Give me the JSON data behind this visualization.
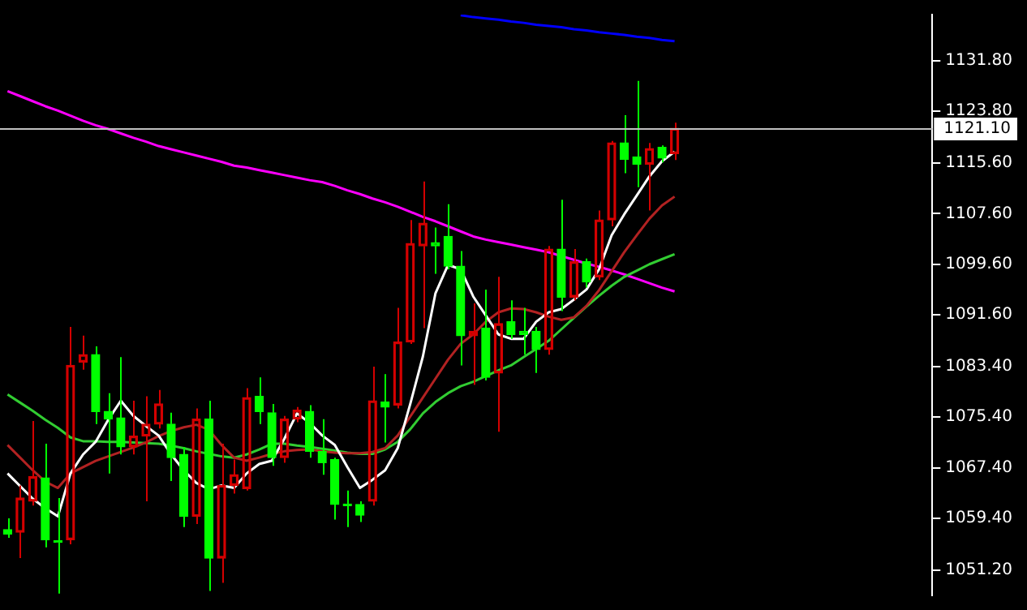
{
  "chart_data": {
    "type": "candlestick",
    "categories": [
      null,
      null,
      null,
      null,
      null,
      null,
      null,
      null,
      null,
      null,
      null,
      null,
      null,
      null,
      null,
      null,
      null,
      null,
      null,
      null,
      null,
      null,
      null,
      null,
      null,
      null,
      null,
      null,
      null,
      null,
      null,
      null,
      null,
      null,
      null,
      null,
      null,
      null,
      null,
      null,
      null,
      null,
      null,
      null,
      null,
      null,
      null,
      null,
      null,
      null,
      null,
      null,
      null,
      null
    ],
    "ohlc": [
      [
        1057.6,
        1059.4,
        1056.3,
        1056.9
      ],
      [
        1057.2,
        1064.6,
        1053.1,
        1062.6
      ],
      [
        1062.1,
        1074.8,
        1061.4,
        1066.0
      ],
      [
        1065.8,
        1071.2,
        1054.8,
        1056.0
      ],
      [
        1055.8,
        1062.6,
        1047.5,
        1055.6
      ],
      [
        1056.0,
        1089.7,
        1055.3,
        1083.6
      ],
      [
        1084.1,
        1088.3,
        1082.9,
        1085.3
      ],
      [
        1085.3,
        1086.6,
        1074.3,
        1076.3
      ],
      [
        1076.3,
        1079.2,
        1066.5,
        1075.1
      ],
      [
        1075.3,
        1084.9,
        1069.5,
        1070.7
      ],
      [
        1070.7,
        1078.0,
        1069.5,
        1072.4
      ],
      [
        1072.4,
        1078.7,
        1062.1,
        1074.3
      ],
      [
        1074.3,
        1079.7,
        1073.6,
        1077.5
      ],
      [
        1074.3,
        1076.1,
        1065.3,
        1069.0
      ],
      [
        1069.5,
        1070.7,
        1058.0,
        1059.7
      ],
      [
        1059.7,
        1076.8,
        1058.5,
        1075.1
      ],
      [
        1075.1,
        1078.0,
        1047.9,
        1053.1
      ],
      [
        1053.1,
        1071.2,
        1049.2,
        1064.6
      ],
      [
        1064.6,
        1068.7,
        1063.3,
        1066.3
      ],
      [
        1064.1,
        1080.0,
        1063.8,
        1078.5
      ],
      [
        1078.7,
        1081.7,
        1074.3,
        1076.3
      ],
      [
        1076.1,
        1077.5,
        1067.7,
        1069.0
      ],
      [
        1069.0,
        1075.6,
        1068.2,
        1075.1
      ],
      [
        1075.1,
        1077.0,
        1074.6,
        1076.5
      ],
      [
        1076.3,
        1077.3,
        1069.0,
        1070.0
      ],
      [
        1070.0,
        1075.1,
        1066.3,
        1068.2
      ],
      [
        1068.7,
        1069.0,
        1059.2,
        1061.6
      ],
      [
        1061.6,
        1063.8,
        1058.0,
        1061.4
      ],
      [
        1061.6,
        1062.1,
        1058.8,
        1059.9
      ],
      [
        1062.1,
        1083.4,
        1061.4,
        1078.0
      ],
      [
        1077.8,
        1082.2,
        1071.4,
        1077.0
      ],
      [
        1077.3,
        1092.7,
        1076.8,
        1087.3
      ],
      [
        1087.3,
        1106.6,
        1087.0,
        1102.9
      ],
      [
        1102.5,
        1112.7,
        1089.5,
        1106.1
      ],
      [
        1103.0,
        1105.4,
        1098.1,
        1102.5
      ],
      [
        1104.0,
        1109.1,
        1098.8,
        1099.3
      ],
      [
        1099.3,
        1101.7,
        1083.6,
        1088.3
      ],
      [
        1088.3,
        1093.4,
        1080.5,
        1089.0
      ],
      [
        1089.5,
        1095.6,
        1081.2,
        1081.7
      ],
      [
        1082.4,
        1097.6,
        1073.1,
        1090.2
      ],
      [
        1090.5,
        1093.9,
        1087.8,
        1088.5
      ],
      [
        1089.0,
        1092.7,
        1085.3,
        1088.5
      ],
      [
        1089.0,
        1089.7,
        1082.4,
        1086.1
      ],
      [
        1086.1,
        1102.5,
        1085.3,
        1102.0
      ],
      [
        1102.0,
        1109.8,
        1092.2,
        1094.4
      ],
      [
        1094.4,
        1102.0,
        1093.9,
        1100.0
      ],
      [
        1100.0,
        1100.5,
        1095.9,
        1096.8
      ],
      [
        1097.6,
        1108.1,
        1097.1,
        1106.6
      ],
      [
        1106.6,
        1119.1,
        1105.6,
        1118.8
      ],
      [
        1118.8,
        1123.2,
        1114.0,
        1116.2
      ],
      [
        1116.6,
        1128.6,
        1111.8,
        1115.4
      ],
      [
        1115.4,
        1118.8,
        1108.1,
        1117.9
      ],
      [
        1118.1,
        1118.4,
        1115.7,
        1116.4
      ],
      [
        1117.1,
        1122.0,
        1116.1,
        1121.1
      ]
    ],
    "colors": [
      "#00ff00",
      "#d40000",
      "#d40000",
      "#00ff00",
      "#00ff00",
      "#d40000",
      "#d40000",
      "#00ff00",
      "#00ff00",
      "#00ff00",
      "#d40000",
      "#d40000",
      "#d40000",
      "#00ff00",
      "#00ff00",
      "#d40000",
      "#00ff00",
      "#d40000",
      "#d40000",
      "#d40000",
      "#00ff00",
      "#00ff00",
      "#d40000",
      "#d40000",
      "#00ff00",
      "#00ff00",
      "#00ff00",
      "#00ff00",
      "#00ff00",
      "#d40000",
      "#00ff00",
      "#d40000",
      "#d40000",
      "#d40000",
      "#00ff00",
      "#00ff00",
      "#00ff00",
      "#d40000",
      "#00ff00",
      "#d40000",
      "#00ff00",
      "#00ff00",
      "#00ff00",
      "#d40000",
      "#00ff00",
      "#d40000",
      "#00ff00",
      "#d40000",
      "#d40000",
      "#00ff00",
      "#00ff00",
      "#d40000",
      "#00ff00",
      "#d40000"
    ],
    "series": [
      {
        "type": "line",
        "color": "#ffffff",
        "values": [
          1066.5,
          1064.5,
          1062.5,
          1061.0,
          1059.7,
          1066.5,
          1069.5,
          1071.5,
          1075.0,
          1078.0,
          1075.6,
          1074.0,
          1072.5,
          1069.5,
          1067.0,
          1065.0,
          1064.0,
          1064.6,
          1064.2,
          1066.5,
          1068.0,
          1068.5,
          1072.0,
          1076.0,
          1074.5,
          1072.5,
          1071.0,
          1067.5,
          1064.2,
          1065.5,
          1067.0,
          1070.5,
          1077.5,
          1085.0,
          1095.0,
          1099.5,
          1098.8,
          1094.5,
          1091.5,
          1088.5,
          1087.8,
          1087.8,
          1090.5,
          1092.0,
          1092.5,
          1094.0,
          1095.6,
          1098.8,
          1104.2,
          1107.5,
          1110.5,
          1113.5,
          1115.9,
          1117.4
        ]
      },
      {
        "type": "line",
        "color": "#b22222",
        "values": [
          1071.0,
          1069.0,
          1067.0,
          1065.2,
          1064.2,
          1066.5,
          1067.5,
          1068.5,
          1069.2,
          1069.9,
          1070.6,
          1071.4,
          1072.4,
          1073.2,
          1073.8,
          1074.2,
          1073.4,
          1071.0,
          1069.0,
          1068.5,
          1069.0,
          1069.6,
          1070.0,
          1070.2,
          1070.3,
          1070.0,
          1069.8,
          1069.7,
          1069.7,
          1069.9,
          1070.5,
          1072.5,
          1075.5,
          1078.5,
          1081.5,
          1084.5,
          1087.0,
          1088.5,
          1090.5,
          1092.0,
          1092.6,
          1092.5,
          1092.0,
          1091.3,
          1090.8,
          1091.2,
          1093.0,
          1095.5,
          1098.5,
          1101.5,
          1104.2,
          1106.8,
          1108.9,
          1110.3
        ]
      },
      {
        "type": "line",
        "color": "#32cd32",
        "values": [
          1079.0,
          1077.7,
          1076.4,
          1075.0,
          1073.7,
          1072.2,
          1071.6,
          1071.6,
          1071.5,
          1071.5,
          1071.4,
          1071.3,
          1071.2,
          1070.9,
          1070.5,
          1070.0,
          1069.6,
          1069.2,
          1069.0,
          1069.5,
          1070.3,
          1071.2,
          1071.2,
          1070.9,
          1070.7,
          1070.4,
          1070.1,
          1069.8,
          1069.6,
          1069.6,
          1070.3,
          1071.5,
          1073.5,
          1076.0,
          1077.8,
          1079.2,
          1080.3,
          1081.0,
          1081.9,
          1082.8,
          1083.6,
          1084.9,
          1086.2,
          1087.5,
          1089.3,
          1091.1,
          1092.9,
          1094.6,
          1096.2,
          1097.6,
          1098.6,
          1099.6,
          1100.4,
          1101.2
        ]
      },
      {
        "type": "line",
        "color": "#ff00ff",
        "values": [
          1127.0,
          1126.2,
          1125.4,
          1124.6,
          1123.9,
          1123.1,
          1122.3,
          1121.6,
          1121.0,
          1120.3,
          1119.6,
          1119.0,
          1118.3,
          1117.8,
          1117.3,
          1116.8,
          1116.3,
          1115.8,
          1115.2,
          1114.9,
          1114.5,
          1114.1,
          1113.7,
          1113.3,
          1112.9,
          1112.6,
          1112.0,
          1111.3,
          1110.7,
          1110.0,
          1109.4,
          1108.7,
          1107.9,
          1107.1,
          1106.4,
          1105.6,
          1104.8,
          1104.0,
          1103.5,
          1103.1,
          1102.7,
          1102.3,
          1101.9,
          1101.5,
          1100.9,
          1100.3,
          1099.7,
          1099.2,
          1098.6,
          1098.0,
          1097.3,
          1096.6,
          1095.9,
          1095.3
        ]
      },
      {
        "type": "line",
        "color": "#0000ff",
        "values": [
          null,
          null,
          null,
          null,
          null,
          null,
          null,
          null,
          null,
          null,
          null,
          null,
          null,
          null,
          null,
          null,
          null,
          null,
          null,
          null,
          null,
          null,
          null,
          null,
          null,
          null,
          null,
          null,
          null,
          null,
          null,
          null,
          null,
          null,
          null,
          null,
          1139.0,
          1138.7,
          1138.5,
          1138.3,
          1138.0,
          1137.8,
          1137.5,
          1137.3,
          1137.1,
          1136.8,
          1136.6,
          1136.3,
          1136.1,
          1135.9,
          1135.6,
          1135.4,
          1135.1,
          1134.9
        ]
      }
    ],
    "ylim": [
      1047.2,
      1139.1
    ],
    "yticks": [
      {
        "value": 1051.2,
        "label": "1051.20"
      },
      {
        "value": 1059.4,
        "label": "1059.40"
      },
      {
        "value": 1067.4,
        "label": "1067.40"
      },
      {
        "value": 1075.4,
        "label": "1075.40"
      },
      {
        "value": 1083.4,
        "label": "1083.40"
      },
      {
        "value": 1091.6,
        "label": "1091.60"
      },
      {
        "value": 1099.6,
        "label": "1099.60"
      },
      {
        "value": 1107.6,
        "label": "1107.60"
      },
      {
        "value": 1115.6,
        "label": "1115.60"
      },
      {
        "value": 1123.8,
        "label": "1123.80"
      },
      {
        "value": 1131.8,
        "label": "1131.80"
      }
    ],
    "tick_labels": "y",
    "grid": false,
    "legend": false,
    "ref_lines": [
      {
        "axis": "y",
        "value": 1121.1,
        "label": "1121.10",
        "color": "#c0c0c0"
      }
    ]
  }
}
